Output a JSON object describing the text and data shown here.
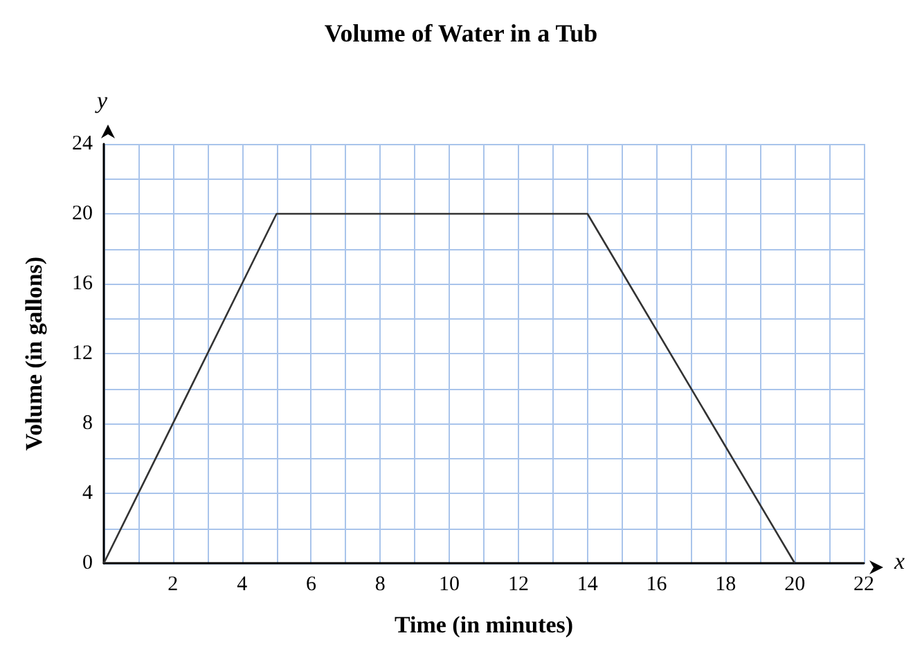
{
  "chart_data": {
    "type": "line",
    "title": "Volume of Water in a Tub",
    "xlabel": "Time (in minutes)",
    "ylabel": "Volume (in gallons)",
    "annotations": [
      "x",
      "y"
    ],
    "x": [
      0,
      5,
      14,
      20
    ],
    "series": [
      {
        "color": "#333333",
        "values": [
          0,
          20,
          20,
          0
        ]
      }
    ],
    "xlim": [
      0,
      22
    ],
    "ylim": [
      0,
      24
    ],
    "xticks": [
      {
        "value": 0,
        "label": null
      },
      {
        "value": 1,
        "label": null
      },
      2,
      {
        "value": 3,
        "label": null
      },
      4,
      {
        "value": 5,
        "label": null
      },
      6,
      {
        "value": 7,
        "label": null
      },
      8,
      {
        "value": 9,
        "label": null
      },
      10,
      {
        "value": 11,
        "label": null
      },
      12,
      {
        "value": 13,
        "label": null
      },
      14,
      {
        "value": 15,
        "label": null
      },
      16,
      {
        "value": 17,
        "label": null
      },
      18,
      {
        "value": 19,
        "label": null
      },
      20,
      {
        "value": 21,
        "label": null
      },
      22
    ],
    "yticks": [
      0,
      {
        "value": 2,
        "label": null
      },
      4,
      {
        "value": 6,
        "label": null
      },
      8,
      {
        "value": 10,
        "label": null
      },
      12,
      {
        "value": 14,
        "label": null
      },
      16,
      {
        "value": 18,
        "label": null
      },
      20,
      {
        "value": 22,
        "label": null
      },
      24
    ],
    "grid": true,
    "marker": "none",
    "line_style": "solid"
  }
}
